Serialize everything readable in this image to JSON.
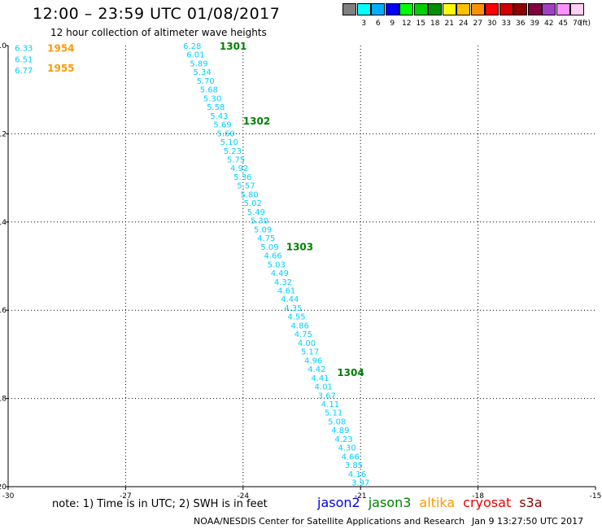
{
  "header": {
    "title": "12:00 – 23:59 UTC 01/08/2017",
    "subtitle": "12 hour collection of altimeter wave heights"
  },
  "scale": {
    "unit_label": "(ft)",
    "swatches": [
      {
        "color": "#808080",
        "label": ""
      },
      {
        "color": "#00ffff",
        "label": "3"
      },
      {
        "color": "#00b0ff",
        "label": "6"
      },
      {
        "color": "#0000ff",
        "label": "9"
      },
      {
        "color": "#00ff00",
        "label": "12"
      },
      {
        "color": "#00d000",
        "label": "15"
      },
      {
        "color": "#009000",
        "label": "18"
      },
      {
        "color": "#ffff00",
        "label": "21"
      },
      {
        "color": "#ffc000",
        "label": "24"
      },
      {
        "color": "#ff9000",
        "label": "27"
      },
      {
        "color": "#ff0000",
        "label": "30"
      },
      {
        "color": "#d00000",
        "label": "33"
      },
      {
        "color": "#900000",
        "label": "36"
      },
      {
        "color": "#800040",
        "label": "39"
      },
      {
        "color": "#a040c0",
        "label": "42"
      },
      {
        "color": "#ff90ff",
        "label": "45"
      },
      {
        "color": "#ffd0f0",
        "label": "70"
      }
    ]
  },
  "footer": {
    "note": "note:  1) Time is in UTC;  2) SWH is in feet",
    "satellites": [
      {
        "name": "jason2",
        "color": "#0000ee"
      },
      {
        "name": "jason3",
        "color": "#008000"
      },
      {
        "name": "altika",
        "color": "#ff9900"
      },
      {
        "name": "cryosat",
        "color": "#ee0000"
      },
      {
        "name": "s3a",
        "color": "#880000"
      }
    ],
    "credit": "NOAA/NESDIS Center for Satellite Applications and Research",
    "timestamp": "Jan  9 13:27:50 UTC 2017"
  },
  "chart_data": {
    "type": "scatter",
    "xlim": [
      -30,
      -15
    ],
    "ylim": [
      -20,
      -10
    ],
    "x_ticks": [
      -30,
      -27,
      -24,
      -21,
      -18,
      -15
    ],
    "x_tick_labels": [
      "-30",
      "-27",
      "-24",
      "-21",
      "-18",
      "-15"
    ],
    "y_ticks": [
      -10,
      -12,
      -14,
      -16,
      -18,
      -20
    ],
    "y_tick_labels": [
      "-10",
      "-12",
      "-14",
      "-16",
      "-18",
      "-20"
    ],
    "grid": true,
    "value_color": "#00d0ff",
    "track_values": [
      "6.28",
      "6.01",
      "5.89",
      "5.34",
      "5.70",
      "5.68",
      "5.30",
      "5.58",
      "5.43",
      "5.69",
      "5.60",
      "5.10",
      "5.23",
      "5.75",
      "4.92",
      "5.36",
      "5.57",
      "5.80",
      "5.02",
      "5.49",
      "5.30",
      "5.09",
      "4.75",
      "5.09",
      "4.66",
      "5.03",
      "4.49",
      "4.32",
      "4.61",
      "4.44",
      "4.35",
      "4.55",
      "4.86",
      "4.75",
      "4.00",
      "5.17",
      "4.96",
      "4.42",
      "4.41",
      "4.01",
      "3.67",
      "4.11",
      "5.11",
      "5.08",
      "4.89",
      "4.23",
      "4.30",
      "4.66",
      "3.85",
      "4.16",
      "3.97"
    ],
    "track_start": {
      "lon": -25.3,
      "lat": -10.0
    },
    "track_end": {
      "lon": -21.0,
      "lat": -19.9
    },
    "corner_values": [
      {
        "value": "6.33",
        "lon": -29.6,
        "lat": -10.05
      },
      {
        "value": "6.51",
        "lon": -29.6,
        "lat": -10.3
      },
      {
        "value": "6.77",
        "lon": -29.6,
        "lat": -10.55
      }
    ],
    "time_labels": [
      {
        "text": "1301",
        "lon": -24.6,
        "lat": -10.0,
        "color": "#008000"
      },
      {
        "text": "1302",
        "lon": -24.0,
        "lat": -11.7,
        "color": "#008000"
      },
      {
        "text": "1303",
        "lon": -22.9,
        "lat": -14.55,
        "color": "#008000"
      },
      {
        "text": "1304",
        "lon": -21.6,
        "lat": -17.4,
        "color": "#008000"
      },
      {
        "text": "1954",
        "lon": -29.0,
        "lat": -10.05,
        "color": "#ff9900"
      },
      {
        "text": "1955",
        "lon": -29.0,
        "lat": -10.5,
        "color": "#ff9900"
      }
    ]
  }
}
